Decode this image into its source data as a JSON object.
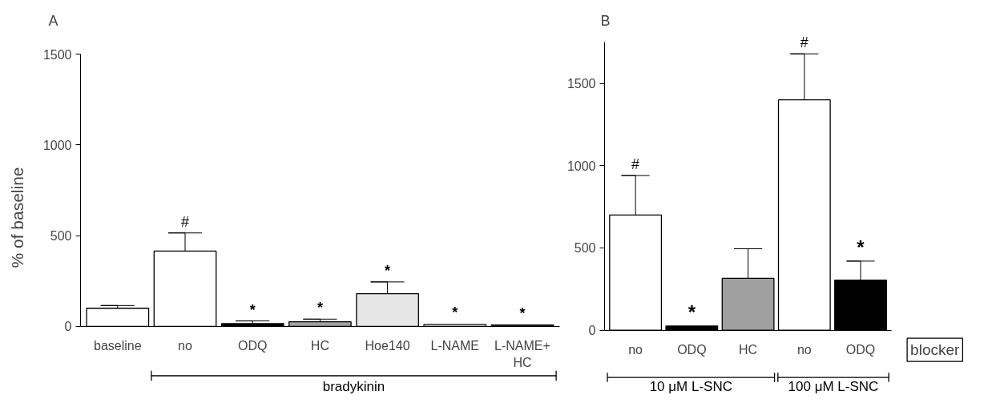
{
  "chart_data": [
    {
      "type": "bar",
      "title": "A",
      "ylabel": "% of baseline",
      "categories": [
        "baseline",
        "no",
        "ODQ",
        "HC",
        "Hoe140",
        "L-NAME",
        "L-NAME+\nHC"
      ],
      "values": [
        100,
        415,
        15,
        25,
        180,
        10,
        8
      ],
      "errors": [
        15,
        100,
        15,
        15,
        65,
        null,
        null
      ],
      "colors": [
        "#ffffff",
        "#ffffff",
        "#000000",
        "#a0a0a0",
        "#e6e6e6",
        "#ffffff",
        "#404040"
      ],
      "ylim": [
        0,
        1500
      ],
      "yticks": [
        0,
        500,
        1000,
        1500
      ],
      "grid": false,
      "annotations": [
        {
          "text": "#",
          "x": "no",
          "y": 515
        },
        {
          "text": "*",
          "x": "ODQ",
          "y": 30
        },
        {
          "text": "*",
          "x": "HC",
          "y": 40
        },
        {
          "text": "*",
          "x": "Hoe140",
          "y": 245
        },
        {
          "text": "*",
          "x": "L-NAME",
          "y": 13
        },
        {
          "text": "*",
          "x": "L-NAME+\nHC",
          "y": 11
        },
        "bradykinin"
      ]
    },
    {
      "type": "bar",
      "title": "B",
      "categories": [
        "no",
        "ODQ",
        "HC",
        "no",
        "ODQ"
      ],
      "values": [
        700,
        25,
        315,
        1400,
        305
      ],
      "errors": [
        240,
        null,
        180,
        280,
        115
      ],
      "colors": [
        "#ffffff",
        "#000000",
        "#a0a0a0",
        "#ffffff",
        "#000000"
      ],
      "ylim": [
        0,
        1750
      ],
      "yticks": [
        0,
        500,
        1000,
        1500
      ],
      "grid": false,
      "annotations": [
        "#",
        "*",
        "#",
        "*",
        "10 μM L-SNC",
        "100 μM L-SNC",
        "blocker"
      ]
    }
  ]
}
